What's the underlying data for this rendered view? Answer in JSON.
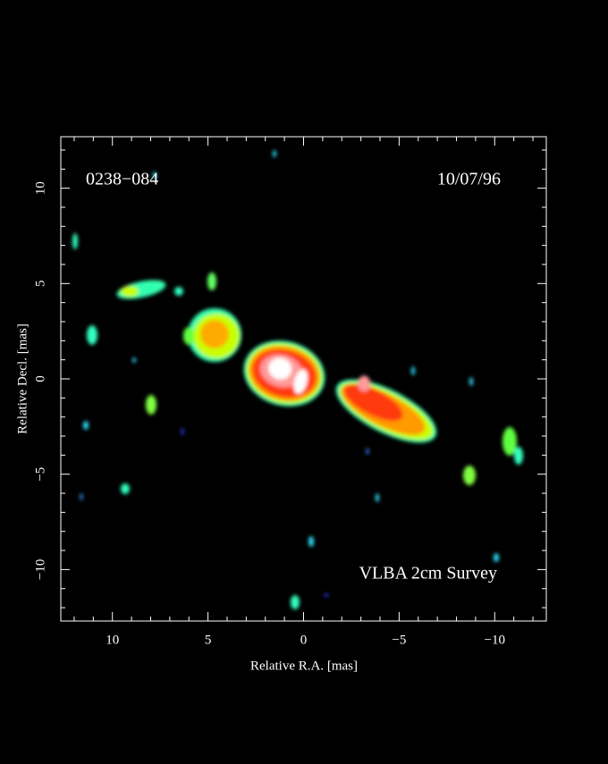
{
  "chart_data": {
    "type": "image",
    "source": "0238−084",
    "date": "10/07/96",
    "annotation": "VLBA 2cm Survey",
    "x_label": "Relative R.A. [mas]",
    "y_label": "Relative Decl. [mas]",
    "xlim": [
      12.7,
      -12.7
    ],
    "ylim": [
      -12.7,
      12.7
    ],
    "xticks": [
      10,
      5,
      0,
      {
        "value": -5,
        "label": "−5"
      },
      {
        "value": -10,
        "label": "−10"
      }
    ],
    "yticks": [
      {
        "value": -10,
        "label": "−10"
      },
      {
        "value": -5,
        "label": "−5"
      },
      0,
      5,
      10
    ],
    "xminorticks": [
      12,
      11,
      9,
      8,
      7,
      6,
      4,
      3,
      2,
      1,
      -1,
      -2,
      -3,
      -4,
      -6,
      -7,
      -8,
      -9,
      -11,
      -12
    ],
    "yminorticks": [
      -12,
      -11,
      -9,
      -8,
      -7,
      -6,
      -4,
      -3,
      -2,
      -1,
      1,
      2,
      3,
      4,
      6,
      7,
      8,
      9,
      11,
      12
    ]
  }
}
